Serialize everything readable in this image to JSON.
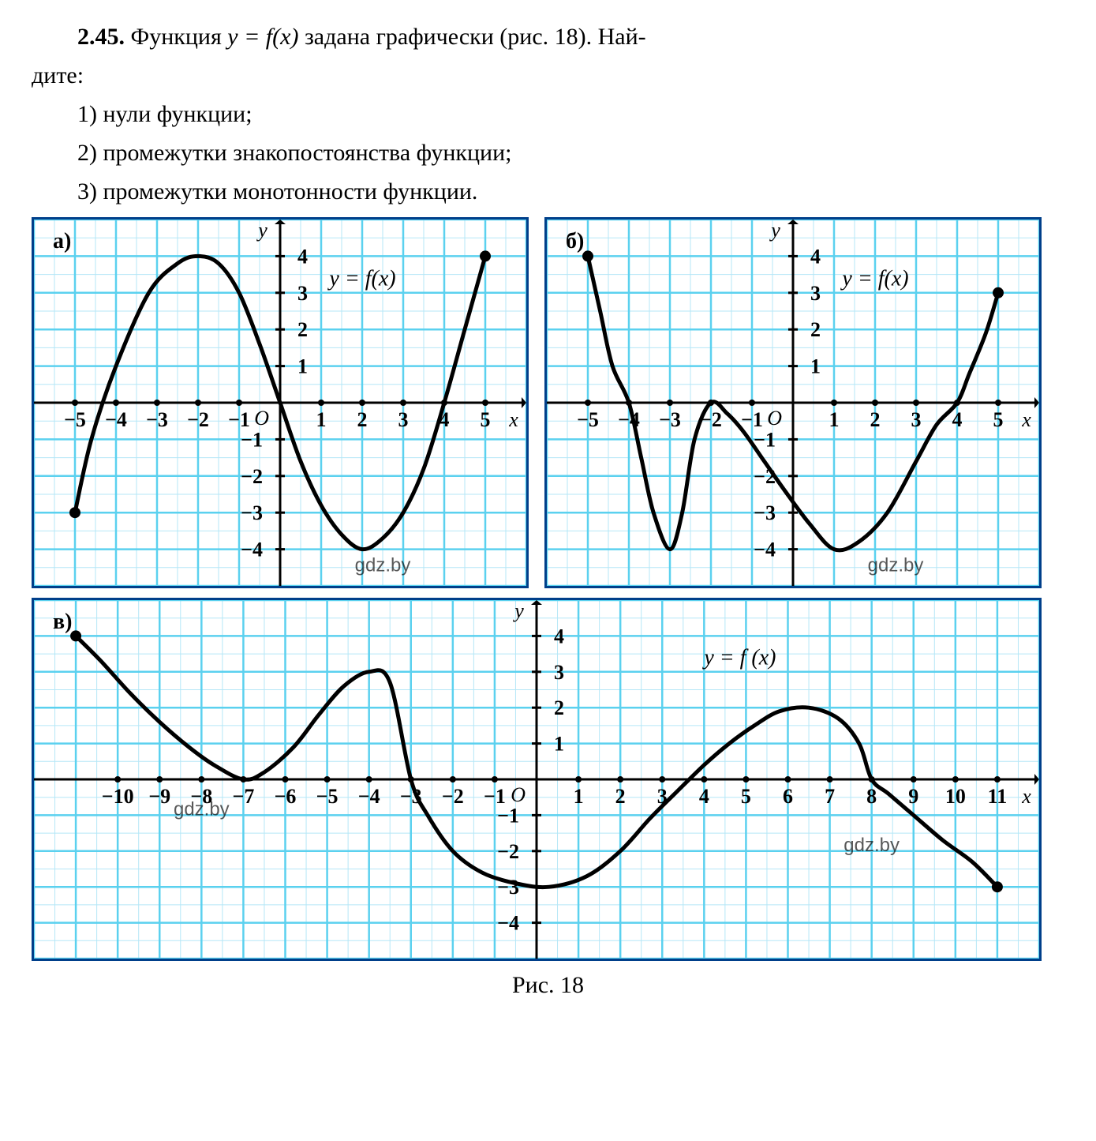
{
  "problem": {
    "number": "2.45.",
    "lead_1": "Функция ",
    "func_expr": "y = f(x)",
    "lead_2": " задана графически (рис. 18). Най-",
    "lead_3": "дите:",
    "items": [
      "1) нули функции;",
      "2) промежутки знакопостоянства функции;",
      "3) промежутки монотонности функции."
    ]
  },
  "figure_caption": "Рис. 18",
  "watermark": "gdz.by",
  "common": {
    "axis_color": "#000000",
    "curve_color": "#000000",
    "grid_minor_color": "#b5e7f7",
    "grid_major_color": "#5bd1ef",
    "background_color": "#ffffff",
    "frame_color": "#003f8a",
    "tick_label_fontsize": 26,
    "panel_label_fontsize": 28,
    "curve_width": 5
  },
  "chart_a": {
    "panel_label": "а)",
    "type": "line",
    "eqn_label": "y = f(x)",
    "xlim": [
      -6,
      6
    ],
    "ylim": [
      -5,
      5
    ],
    "xticks": [
      -5,
      -4,
      -3,
      -2,
      -1,
      1,
      2,
      3,
      4,
      5
    ],
    "yticks": [
      -4,
      -3,
      -2,
      -1,
      1,
      2,
      3,
      4
    ],
    "xtick_labels": [
      "−5",
      "−4",
      "−3",
      "−2",
      "−1",
      "1",
      "2",
      "3",
      "4",
      "5"
    ],
    "ytick_labels": [
      "−4",
      "−3",
      "−2",
      "−1",
      "1",
      "2",
      "3",
      "4"
    ],
    "origin_label": "O",
    "xaxis_label": "x",
    "yaxis_label": "y",
    "points": [
      [
        -5,
        -3
      ],
      [
        -4.6,
        -1
      ],
      [
        -4,
        1
      ],
      [
        -3.2,
        3
      ],
      [
        -2.5,
        3.8
      ],
      [
        -2,
        4
      ],
      [
        -1.5,
        3.8
      ],
      [
        -1,
        3
      ],
      [
        -0.5,
        1.6
      ],
      [
        0,
        0
      ],
      [
        0.5,
        -1.6
      ],
      [
        1,
        -2.8
      ],
      [
        1.5,
        -3.6
      ],
      [
        2,
        -4
      ],
      [
        2.5,
        -3.7
      ],
      [
        3,
        -3
      ],
      [
        3.5,
        -1.8
      ],
      [
        4,
        0
      ],
      [
        4.5,
        2
      ],
      [
        5,
        4
      ]
    ],
    "endpoints": [
      [
        -5,
        -3
      ],
      [
        5,
        4
      ]
    ]
  },
  "chart_b": {
    "panel_label": "б)",
    "type": "line",
    "eqn_label": "y = f(x)",
    "xlim": [
      -6,
      6
    ],
    "ylim": [
      -5,
      5
    ],
    "xticks": [
      -5,
      -4,
      -3,
      -2,
      -1,
      1,
      2,
      3,
      4,
      5
    ],
    "yticks": [
      -4,
      -3,
      -2,
      -1,
      1,
      2,
      3,
      4
    ],
    "xtick_labels": [
      "−5",
      "−4",
      "−3",
      "−2",
      "−1",
      "1",
      "2",
      "3",
      "4",
      "5"
    ],
    "ytick_labels": [
      "−4",
      "−3",
      "−2",
      "−1",
      "1",
      "2",
      "3",
      "4"
    ],
    "origin_label": "O",
    "xaxis_label": "x",
    "yaxis_label": "y",
    "points": [
      [
        -5,
        4
      ],
      [
        -4.7,
        2.5
      ],
      [
        -4.4,
        1
      ],
      [
        -4,
        0
      ],
      [
        -3.7,
        -1.5
      ],
      [
        -3.4,
        -3
      ],
      [
        -3,
        -4
      ],
      [
        -2.7,
        -3
      ],
      [
        -2.4,
        -1
      ],
      [
        -2,
        0
      ],
      [
        -1.6,
        -0.3
      ],
      [
        -1.2,
        -0.8
      ],
      [
        -0.7,
        -1.6
      ],
      [
        -0.2,
        -2.4
      ],
      [
        0.4,
        -3.3
      ],
      [
        1,
        -4
      ],
      [
        1.6,
        -3.8
      ],
      [
        2.3,
        -3
      ],
      [
        3,
        -1.6
      ],
      [
        3.5,
        -0.6
      ],
      [
        4,
        0
      ],
      [
        4.3,
        0.8
      ],
      [
        4.7,
        1.9
      ],
      [
        5,
        3
      ]
    ],
    "endpoints": [
      [
        -5,
        4
      ],
      [
        5,
        3
      ]
    ]
  },
  "chart_c": {
    "panel_label": "в)",
    "type": "line",
    "eqn_label": "y = f (x)",
    "xlim": [
      -12,
      12
    ],
    "ylim": [
      -5,
      5
    ],
    "xticks": [
      -10,
      -9,
      -8,
      -7,
      -6,
      -5,
      -4,
      -3,
      -2,
      -1,
      1,
      2,
      3,
      4,
      5,
      6,
      7,
      8,
      9,
      10,
      11
    ],
    "yticks": [
      -4,
      -3,
      -2,
      -1,
      1,
      2,
      3,
      4
    ],
    "xtick_labels": [
      "−10",
      "−9",
      "−8",
      "−7",
      "−6",
      "−5",
      "−4",
      "−3",
      "−2",
      "−1",
      "1",
      "2",
      "3",
      "4",
      "5",
      "6",
      "7",
      "8",
      "9",
      "10",
      "11"
    ],
    "ytick_labels": [
      "−4",
      "−3",
      "−2",
      "−1",
      "1",
      "2",
      "3",
      "4"
    ],
    "origin_label": "O",
    "xaxis_label": "x",
    "yaxis_label": "y",
    "points": [
      [
        -11,
        4
      ],
      [
        -10.4,
        3.3
      ],
      [
        -9.7,
        2.4
      ],
      [
        -9,
        1.6
      ],
      [
        -8.3,
        0.9
      ],
      [
        -7.7,
        0.4
      ],
      [
        -7,
        0
      ],
      [
        -6.5,
        0.2
      ],
      [
        -5.8,
        0.9
      ],
      [
        -5.2,
        1.8
      ],
      [
        -4.6,
        2.6
      ],
      [
        -4,
        3
      ],
      [
        -3.5,
        2.7
      ],
      [
        -3,
        0
      ],
      [
        -2.6,
        -1
      ],
      [
        -2,
        -2
      ],
      [
        -1.3,
        -2.6
      ],
      [
        -0.5,
        -2.9
      ],
      [
        0.3,
        -3
      ],
      [
        1.2,
        -2.7
      ],
      [
        2,
        -2
      ],
      [
        2.7,
        -1.1
      ],
      [
        3.3,
        -0.4
      ],
      [
        4,
        0.4
      ],
      [
        4.6,
        1
      ],
      [
        5.2,
        1.5
      ],
      [
        5.8,
        1.9
      ],
      [
        6.5,
        2
      ],
      [
        7.2,
        1.7
      ],
      [
        7.7,
        1
      ],
      [
        8,
        0
      ],
      [
        8.4,
        -0.4
      ],
      [
        9,
        -1
      ],
      [
        9.7,
        -1.7
      ],
      [
        10.4,
        -2.3
      ],
      [
        11,
        -3
      ]
    ],
    "endpoints": [
      [
        -11,
        4
      ],
      [
        11,
        -3
      ]
    ]
  }
}
